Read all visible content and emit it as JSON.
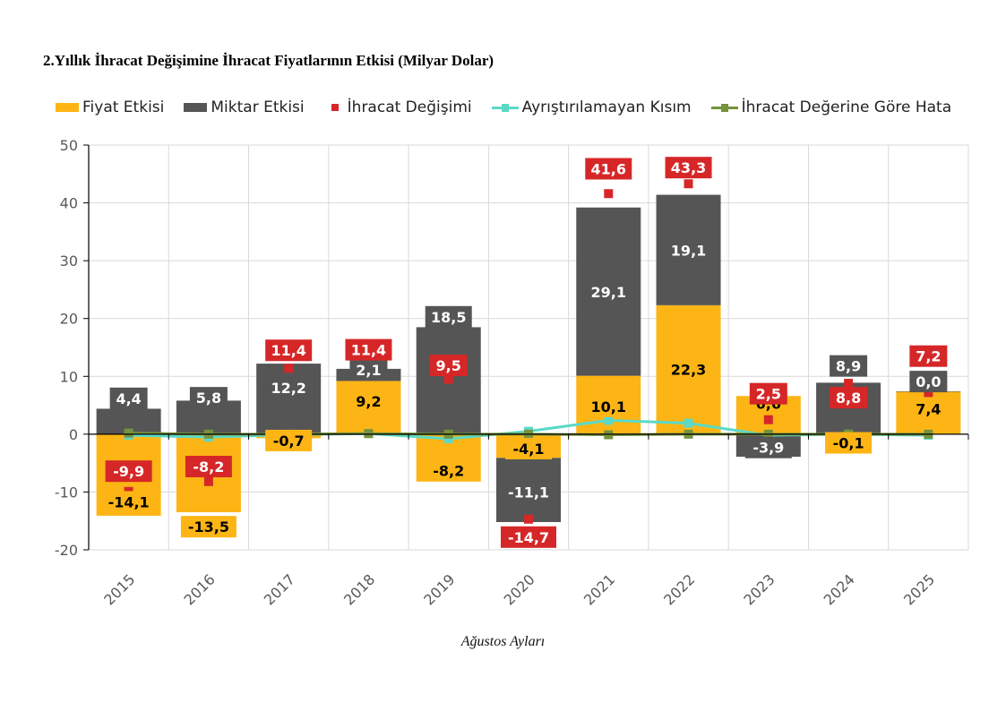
{
  "chart_data": {
    "type": "bar",
    "title": "2.Yıllık İhracat Değişimine İhracat Fiyatlarının Etkisi (Milyar Dolar)",
    "xlabel": "Ağustos Ayları",
    "ylabel": "",
    "ylim": [
      -20,
      50
    ],
    "yticks": [
      -20,
      -10,
      0,
      10,
      20,
      30,
      40,
      50
    ],
    "ytick_labels": [
      "-20",
      "-10",
      "0",
      "10",
      "20",
      "30",
      "40",
      "50"
    ],
    "grid": true,
    "legend_position": "top",
    "stacked": true,
    "categories": [
      "2015",
      "2016",
      "2017",
      "2018",
      "2019",
      "2020",
      "2021",
      "2022",
      "2023",
      "2024",
      "2025"
    ],
    "series": [
      {
        "name": "Fiyat Etkisi",
        "kind": "bar",
        "color": "#FDB515",
        "values": [
          -14.1,
          -13.5,
          -0.7,
          9.2,
          -8.2,
          -4.1,
          10.1,
          22.3,
          6.6,
          -0.1,
          7.4
        ],
        "labels": [
          "-14,1",
          "-13,5",
          "-0,7",
          "9,2",
          "-8,2",
          "-4,1",
          "10,1",
          "22,3",
          "6,6",
          "-0,1",
          "7,4"
        ]
      },
      {
        "name": "Miktar Etkisi",
        "kind": "bar",
        "color": "#555555",
        "values": [
          4.4,
          5.8,
          12.2,
          2.1,
          18.5,
          -11.1,
          29.1,
          19.1,
          -3.9,
          8.9,
          0.0
        ],
        "labels": [
          "4,4",
          "5,8",
          "12,2",
          "2,1",
          "18,5",
          "-11,1",
          "29,1",
          "19,1",
          "-3,9",
          "8,9",
          "0,0"
        ]
      },
      {
        "name": "İhracat Değişimi",
        "kind": "marker",
        "color": "#D62728",
        "values": [
          -9.9,
          -8.2,
          11.4,
          11.4,
          9.5,
          -14.7,
          41.6,
          43.3,
          2.5,
          8.8,
          7.2
        ],
        "labels": [
          "-9,9",
          "-8,2",
          "11,4",
          "11,4",
          "9,5",
          "-14,7",
          "41,6",
          "43,3",
          "2,5",
          "8,8",
          "7,2"
        ]
      },
      {
        "name": "Ayrıştırılamayan Kısım",
        "kind": "line",
        "color": "#5BD9C7",
        "values": [
          -0.2,
          -0.5,
          -0.1,
          0.1,
          -0.8,
          0.5,
          2.4,
          1.9,
          -0.2,
          0.0,
          -0.2
        ]
      },
      {
        "name": "İhracat Değerine Göre Hata",
        "kind": "line",
        "color": "#76923C",
        "values": [
          0.2,
          0.0,
          0.0,
          0.1,
          0.0,
          0.0,
          -0.1,
          0.0,
          0.0,
          0.0,
          0.0
        ]
      }
    ]
  }
}
